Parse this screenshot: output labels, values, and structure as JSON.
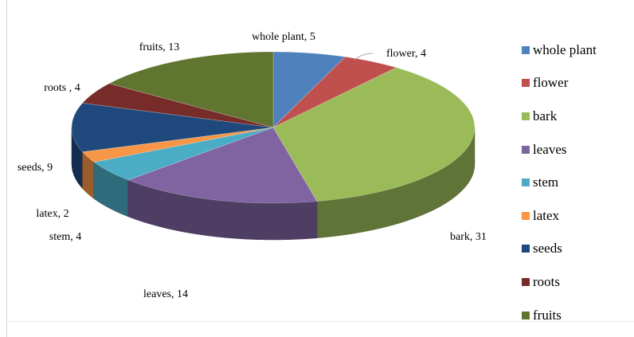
{
  "chart_data": {
    "type": "pie",
    "variant": "3d",
    "title": "",
    "slices": [
      {
        "name": "whole plant",
        "value": 5,
        "label": "whole plant, 5",
        "color": "#4f81bd"
      },
      {
        "name": "flower",
        "value": 4,
        "label": "flower, 4",
        "color": "#c0504d"
      },
      {
        "name": "bark",
        "value": 31,
        "label": "bark, 31",
        "color": "#9bbb59"
      },
      {
        "name": "leaves",
        "value": 14,
        "label": "leaves, 14",
        "color": "#8064a2"
      },
      {
        "name": "stem",
        "value": 4,
        "label": "stem, 4",
        "color": "#4bacc6"
      },
      {
        "name": "latex",
        "value": 2,
        "label": "latex, 2",
        "color": "#f79646"
      },
      {
        "name": "seeds",
        "value": 9,
        "label": "seeds, 9",
        "color": "#1f497d"
      },
      {
        "name": "roots",
        "value": 4,
        "label": "roots , 4",
        "color": "#772c2a"
      },
      {
        "name": "fruits",
        "value": 13,
        "label": "fruits, 13",
        "color": "#5f7530"
      }
    ],
    "legend": {
      "position": "right",
      "entries": [
        "whole plant",
        "flower",
        "bark",
        "leaves",
        "stem",
        "latex",
        "seeds",
        "roots",
        "fruits"
      ]
    }
  }
}
